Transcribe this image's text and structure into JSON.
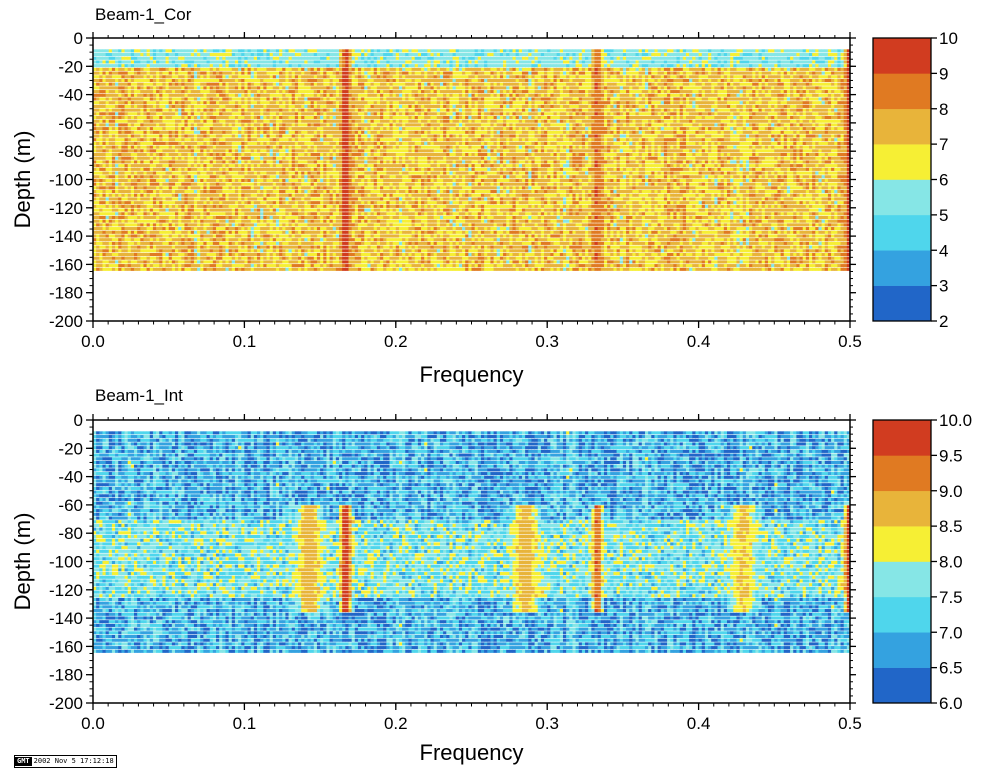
{
  "colors": {
    "palette": [
      "#2166c8",
      "#34a2e0",
      "#4fd6ec",
      "#86e6e6",
      "#f6ef34",
      "#e8b43a",
      "#e07a22",
      "#d13c20"
    ],
    "background": "#ffffff",
    "frame": "#000000"
  },
  "chart_data": [
    {
      "type": "heatmap",
      "title": "Beam-1_Cor",
      "xlabel": "Frequency",
      "ylabel": "Depth (m)",
      "xlim": [
        0.0,
        0.5
      ],
      "ylim": [
        -200,
        0
      ],
      "xticks": [
        "0.0",
        "0.1",
        "0.2",
        "0.3",
        "0.4",
        "0.5"
      ],
      "yticks": [
        "0",
        "-20",
        "-40",
        "-60",
        "-80",
        "-100",
        "-120",
        "-140",
        "-160",
        "-180",
        "-200"
      ],
      "colorbar": {
        "min": 2,
        "max": 10,
        "ticks": [
          "2",
          "3",
          "4",
          "5",
          "6",
          "7",
          "8",
          "9",
          "10"
        ]
      },
      "data_extent": {
        "depth_top": -8,
        "depth_bottom": -165,
        "freq_min": 0.0,
        "freq_max": 0.5
      },
      "grid": false,
      "features": [
        {
          "description": "lower correlation near surface",
          "depth_range": [
            -20,
            -8
          ],
          "approx_value": 5.5
        },
        {
          "description": "strong peak",
          "frequency": 0.167,
          "approx_value": 9.5
        },
        {
          "description": "strong peak",
          "frequency": 0.333,
          "approx_value": 9.0
        },
        {
          "description": "peak",
          "frequency": 0.5,
          "approx_value": 9.5
        }
      ]
    },
    {
      "type": "heatmap",
      "title": "Beam-1_Int",
      "xlabel": "Frequency",
      "ylabel": "Depth (m)",
      "xlim": [
        0.0,
        0.5
      ],
      "ylim": [
        -200,
        0
      ],
      "xticks": [
        "0.0",
        "0.1",
        "0.2",
        "0.3",
        "0.4",
        "0.5"
      ],
      "yticks": [
        "0",
        "-20",
        "-40",
        "-60",
        "-80",
        "-100",
        "-120",
        "-140",
        "-160",
        "-180",
        "-200"
      ],
      "colorbar": {
        "min": 6.0,
        "max": 10.0,
        "ticks": [
          "6.0",
          "6.5",
          "7.0",
          "7.5",
          "8.0",
          "8.5",
          "9.0",
          "9.5",
          "10.0"
        ]
      },
      "data_extent": {
        "depth_top": -8,
        "depth_bottom": -165,
        "freq_min": 0.0,
        "freq_max": 0.5
      },
      "grid": false,
      "features": [
        {
          "description": "mid-depth band elevated",
          "depth_range": [
            -125,
            -70
          ],
          "approx_value": 7.6
        },
        {
          "description": "broad peak",
          "frequency": 0.143,
          "approx_value": 8.8
        },
        {
          "description": "strong peak",
          "frequency": 0.167,
          "approx_value": 10.0
        },
        {
          "description": "broad peak",
          "frequency": 0.286,
          "approx_value": 8.8
        },
        {
          "description": "strong peak",
          "frequency": 0.333,
          "approx_value": 9.5
        },
        {
          "description": "broad peak",
          "frequency": 0.429,
          "approx_value": 8.6
        },
        {
          "description": "strong peak",
          "frequency": 0.5,
          "approx_value": 10.0
        }
      ]
    }
  ],
  "footer": {
    "logo": "GMT",
    "timestamp": "2002 Nov 5 17:12:18"
  }
}
